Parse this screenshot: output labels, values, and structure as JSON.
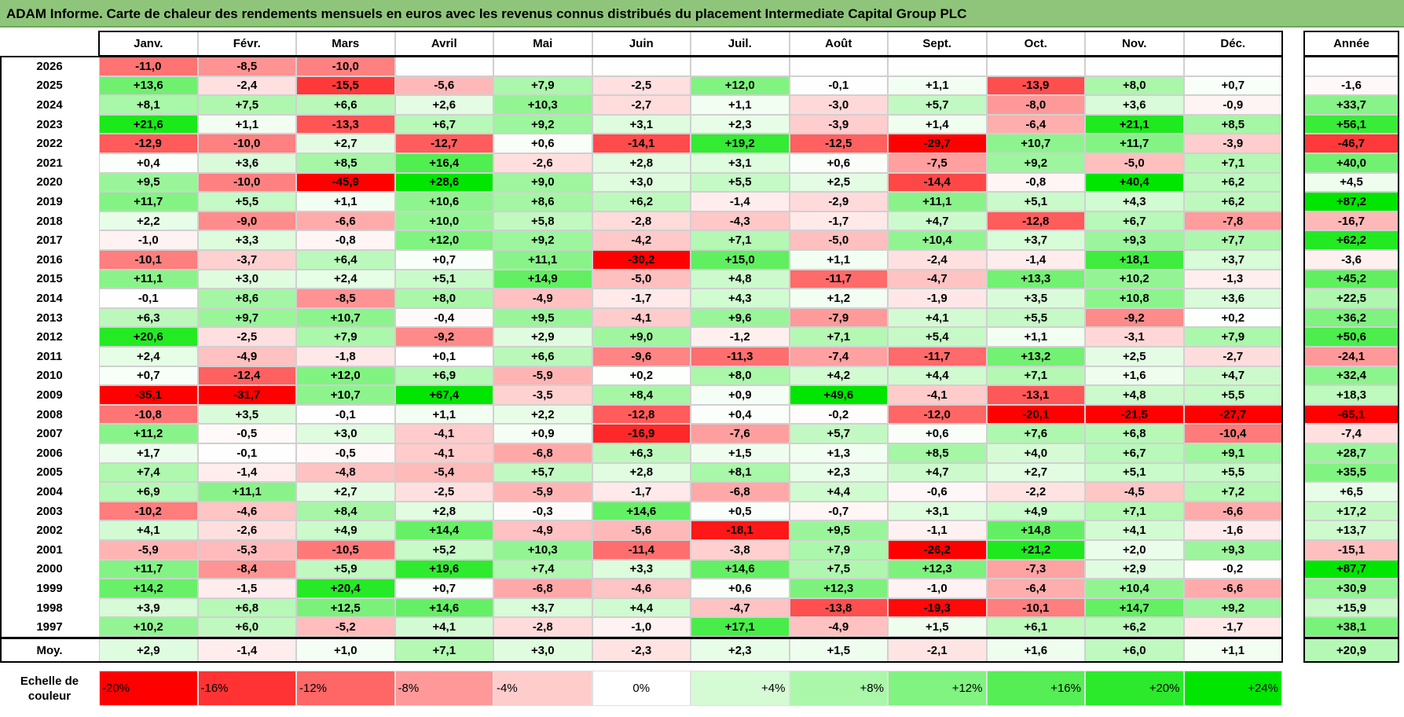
{
  "title": "ADAM Informe. Carte de chaleur des rendements mensuels en euros avec les revenus connus distribués du placement Intermediate Capital Group PLC",
  "chart_data": {
    "type": "heatmap",
    "title": "ADAM Informe. Carte de chaleur des rendements mensuels en euros avec les revenus connus distribués du placement Intermediate Capital Group PLC",
    "columns": [
      "Janv.",
      "Févr.",
      "Mars",
      "Avril",
      "Mai",
      "Juin",
      "Juil.",
      "Août",
      "Sept.",
      "Oct.",
      "Nov.",
      "Déc."
    ],
    "year_column_label": "Année",
    "rows": [
      {
        "year": "2026",
        "values": [
          "-11,0",
          "-8,5",
          "-10,0",
          "",
          "",
          "",
          "",
          "",
          "",
          "",
          "",
          ""
        ],
        "annual": ""
      },
      {
        "year": "2025",
        "values": [
          "+13,6",
          "-2,4",
          "-15,5",
          "-5,6",
          "+7,9",
          "-2,5",
          "+12,0",
          "-0,1",
          "+1,1",
          "-13,9",
          "+8,0",
          "+0,7"
        ],
        "annual": "-1,6"
      },
      {
        "year": "2024",
        "values": [
          "+8,1",
          "+7,5",
          "+6,6",
          "+2,6",
          "+10,3",
          "-2,7",
          "+1,1",
          "-3,0",
          "+5,7",
          "-8,0",
          "+3,6",
          "-0,9"
        ],
        "annual": "+33,7"
      },
      {
        "year": "2023",
        "values": [
          "+21,6",
          "+1,1",
          "-13,3",
          "+6,7",
          "+9,2",
          "+3,1",
          "+2,3",
          "-3,9",
          "+1,4",
          "-6,4",
          "+21,1",
          "+8,5"
        ],
        "annual": "+56,1"
      },
      {
        "year": "2022",
        "values": [
          "-12,9",
          "-10,0",
          "+2,7",
          "-12,7",
          "+0,6",
          "-14,1",
          "+19,2",
          "-12,5",
          "-29,7",
          "+10,7",
          "+11,7",
          "-3,9"
        ],
        "annual": "-46,7"
      },
      {
        "year": "2021",
        "values": [
          "+0,4",
          "+3,6",
          "+8,5",
          "+16,4",
          "-2,6",
          "+2,8",
          "+3,1",
          "+0,6",
          "-7,5",
          "+9,2",
          "-5,0",
          "+7,1"
        ],
        "annual": "+40,0"
      },
      {
        "year": "2020",
        "values": [
          "+9,5",
          "-10,0",
          "-45,9",
          "+28,6",
          "+9,0",
          "+3,0",
          "+5,5",
          "+2,5",
          "-14,4",
          "-0,8",
          "+40,4",
          "+6,2"
        ],
        "annual": "+4,5"
      },
      {
        "year": "2019",
        "values": [
          "+11,7",
          "+5,5",
          "+1,1",
          "+10,6",
          "+8,6",
          "+6,2",
          "-1,4",
          "-2,9",
          "+11,1",
          "+5,1",
          "+4,3",
          "+6,2"
        ],
        "annual": "+87,2"
      },
      {
        "year": "2018",
        "values": [
          "+2,2",
          "-9,0",
          "-6,6",
          "+10,0",
          "+5,8",
          "-2,8",
          "-4,3",
          "-1,7",
          "+4,7",
          "-12,8",
          "+6,7",
          "-7,8"
        ],
        "annual": "-16,7"
      },
      {
        "year": "2017",
        "values": [
          "-1,0",
          "+3,3",
          "-0,8",
          "+12,0",
          "+9,2",
          "-4,2",
          "+7,1",
          "-5,0",
          "+10,4",
          "+3,7",
          "+9,3",
          "+7,7"
        ],
        "annual": "+62,2"
      },
      {
        "year": "2016",
        "values": [
          "-10,1",
          "-3,7",
          "+6,4",
          "+0,7",
          "+11,1",
          "-30,2",
          "+15,0",
          "+1,1",
          "-2,4",
          "-1,4",
          "+18,1",
          "+3,7"
        ],
        "annual": "-3,6"
      },
      {
        "year": "2015",
        "values": [
          "+11,1",
          "+3,0",
          "+2,4",
          "+5,1",
          "+14,9",
          "-5,0",
          "+4,8",
          "-11,7",
          "-4,7",
          "+13,3",
          "+10,2",
          "-1,3"
        ],
        "annual": "+45,2"
      },
      {
        "year": "2014",
        "values": [
          "-0,1",
          "+8,6",
          "-8,5",
          "+8,0",
          "-4,9",
          "-1,7",
          "+4,3",
          "+1,2",
          "-1,9",
          "+3,5",
          "+10,8",
          "+3,6"
        ],
        "annual": "+22,5"
      },
      {
        "year": "2013",
        "values": [
          "+6,3",
          "+9,7",
          "+10,7",
          "-0,4",
          "+9,5",
          "-4,1",
          "+9,6",
          "-7,9",
          "+4,1",
          "+5,5",
          "-9,2",
          "+0,2"
        ],
        "annual": "+36,2"
      },
      {
        "year": "2012",
        "values": [
          "+20,6",
          "-2,5",
          "+7,9",
          "-9,2",
          "+2,9",
          "+9,0",
          "-1,2",
          "+7,1",
          "+5,4",
          "+1,1",
          "-3,1",
          "+7,9"
        ],
        "annual": "+50,6"
      },
      {
        "year": "2011",
        "values": [
          "+2,4",
          "-4,9",
          "-1,8",
          "+0,1",
          "+6,6",
          "-9,6",
          "-11,3",
          "-7,4",
          "-11,7",
          "+13,2",
          "+2,5",
          "-2,7"
        ],
        "annual": "-24,1"
      },
      {
        "year": "2010",
        "values": [
          "+0,7",
          "-12,4",
          "+12,0",
          "+6,9",
          "-5,9",
          "+0,2",
          "+8,0",
          "+4,2",
          "+4,4",
          "+7,1",
          "+1,6",
          "+4,7"
        ],
        "annual": "+32,4"
      },
      {
        "year": "2009",
        "values": [
          "-35,1",
          "-31,7",
          "+10,7",
          "+67,4",
          "-3,5",
          "+8,4",
          "+0,9",
          "+49,6",
          "-4,1",
          "-13,1",
          "+4,8",
          "+5,5"
        ],
        "annual": "+18,3"
      },
      {
        "year": "2008",
        "values": [
          "-10,8",
          "+3,5",
          "-0,1",
          "+1,1",
          "+2,2",
          "-12,8",
          "+0,4",
          "-0,2",
          "-12,0",
          "-20,1",
          "-21,5",
          "-27,7"
        ],
        "annual": "-65,1"
      },
      {
        "year": "2007",
        "values": [
          "+11,2",
          "-0,5",
          "+3,0",
          "-4,1",
          "+0,9",
          "-16,9",
          "-7,6",
          "+5,7",
          "+0,6",
          "+7,6",
          "+6,8",
          "-10,4"
        ],
        "annual": "-7,4"
      },
      {
        "year": "2006",
        "values": [
          "+1,7",
          "-0,1",
          "-0,5",
          "-4,1",
          "-6,8",
          "+6,3",
          "+1,5",
          "+1,3",
          "+8,5",
          "+4,0",
          "+6,7",
          "+9,1"
        ],
        "annual": "+28,7"
      },
      {
        "year": "2005",
        "values": [
          "+7,4",
          "-1,4",
          "-4,8",
          "-5,4",
          "+5,7",
          "+2,8",
          "+8,1",
          "+2,3",
          "+4,7",
          "+2,7",
          "+5,1",
          "+5,5"
        ],
        "annual": "+35,5"
      },
      {
        "year": "2004",
        "values": [
          "+6,9",
          "+11,1",
          "+2,7",
          "-2,5",
          "-5,9",
          "-1,7",
          "-6,8",
          "+4,4",
          "-0,6",
          "-2,2",
          "-4,5",
          "+7,2"
        ],
        "annual": "+6,5"
      },
      {
        "year": "2003",
        "values": [
          "-10,2",
          "-4,6",
          "+8,4",
          "+2,8",
          "-0,3",
          "+14,6",
          "+0,5",
          "-0,7",
          "+3,1",
          "+4,9",
          "+7,1",
          "-6,6"
        ],
        "annual": "+17,2"
      },
      {
        "year": "2002",
        "values": [
          "+4,1",
          "-2,6",
          "+4,9",
          "+14,4",
          "-4,9",
          "-5,6",
          "-18,1",
          "+9,5",
          "-1,1",
          "+14,8",
          "+4,1",
          "-1,6"
        ],
        "annual": "+13,7"
      },
      {
        "year": "2001",
        "values": [
          "-5,9",
          "-5,3",
          "-10,5",
          "+5,2",
          "+10,3",
          "-11,4",
          "-3,8",
          "+7,9",
          "-26,2",
          "+21,2",
          "+2,0",
          "+9,3"
        ],
        "annual": "-15,1"
      },
      {
        "year": "2000",
        "values": [
          "+11,7",
          "-8,4",
          "+5,9",
          "+19,6",
          "+7,4",
          "+3,3",
          "+14,6",
          "+7,5",
          "+12,3",
          "-7,3",
          "+2,9",
          "-0,2"
        ],
        "annual": "+87,7"
      },
      {
        "year": "1999",
        "values": [
          "+14,2",
          "-1,5",
          "+20,4",
          "+0,7",
          "-6,8",
          "-4,6",
          "+0,6",
          "+12,3",
          "-1,0",
          "-6,4",
          "+10,4",
          "-6,6"
        ],
        "annual": "+30,9"
      },
      {
        "year": "1998",
        "values": [
          "+3,9",
          "+6,8",
          "+12,5",
          "+14,6",
          "+3,7",
          "+4,4",
          "-4,7",
          "-13,8",
          "-19,3",
          "-10,1",
          "+14,7",
          "+9,2"
        ],
        "annual": "+15,9"
      },
      {
        "year": "1997",
        "values": [
          "+10,2",
          "+6,0",
          "-5,2",
          "+4,1",
          "-2,8",
          "-1,0",
          "+17,1",
          "-4,9",
          "+1,5",
          "+6,1",
          "+6,2",
          "-1,7"
        ],
        "annual": "+38,1"
      }
    ],
    "average_row": {
      "label": "Moy.",
      "values": [
        "+2,9",
        "-1,4",
        "+1,0",
        "+7,1",
        "+3,0",
        "-2,3",
        "+2,3",
        "+1,5",
        "-2,1",
        "+1,6",
        "+6,0",
        "+1,1"
      ],
      "annual": "+20,9"
    },
    "color_scale": {
      "label": "Echelle de couleur",
      "stops": [
        "-20%",
        "-16%",
        "-12%",
        "-8%",
        "-4%",
        "0%",
        "+4%",
        "+8%",
        "+12%",
        "+16%",
        "+20%",
        "+24%"
      ]
    },
    "colors": {
      "negative_max": "#ff0000",
      "neutral": "#ffffff",
      "positive_max": "#00e600",
      "title_bg": "#8fc57a"
    }
  }
}
